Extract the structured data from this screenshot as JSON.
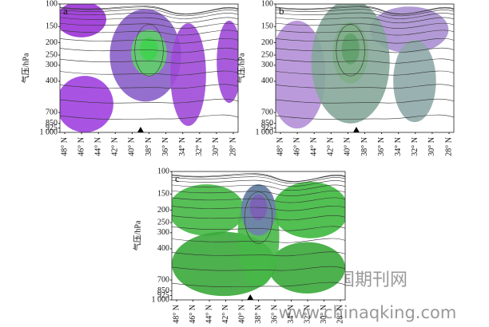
{
  "chart_data": [
    {
      "type": "contour",
      "panel_label": "a",
      "ylabel": "气压/hPa",
      "ylim": [
        100,
        1000
      ],
      "ylog": true,
      "yticks": [
        100,
        150,
        200,
        250,
        300,
        400,
        700,
        850,
        925,
        {
          "value": 1000,
          "label": "1 000"
        }
      ],
      "categories": [
        "48° N",
        "46° N",
        "44° N",
        "42° N",
        "40° N",
        "38° N",
        "36° N",
        "34° N",
        "32° N",
        "30° N",
        "28° N"
      ]
    },
    {
      "type": "contour",
      "panel_label": "b",
      "ylabel": "气压/hPa",
      "ylim": [
        100,
        1000
      ],
      "ylog": true,
      "yticks": [
        100,
        150,
        200,
        250,
        300,
        400,
        700,
        850,
        925,
        {
          "value": 1000,
          "label": "1 000"
        }
      ],
      "categories": [
        "48° N",
        "46° N",
        "44° N",
        "42° N",
        "40° N",
        "38° N",
        "36° N",
        "34° N",
        "32° N",
        "30° N",
        "28° N"
      ]
    },
    {
      "type": "contour",
      "panel_label": "c",
      "ylabel": "气压/hPa",
      "ylim": [
        100,
        1000
      ],
      "ylog": true,
      "yticks": [
        100,
        150,
        200,
        250,
        300,
        400,
        700,
        850,
        925,
        {
          "value": 1000,
          "label": "1 000"
        }
      ],
      "categories": [
        "48° N",
        "46° N",
        "44° N",
        "42° N",
        "40° N",
        "38° N",
        "36° N",
        "34° N",
        "32° N",
        "30° N",
        "28° N"
      ]
    }
  ],
  "watermark": {
    "site": "中国期刊网",
    "url": "www.chinaqking.com"
  }
}
